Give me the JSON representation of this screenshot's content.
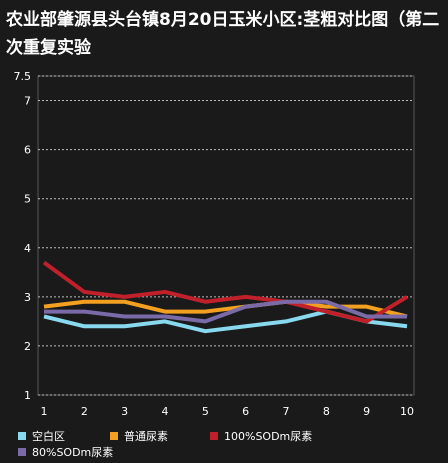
{
  "chart_data": {
    "type": "line",
    "title": "农业部肇源县头台镇8月20日玉米小区:茎粗对比图（第二次重复实验",
    "categories": [
      "1",
      "2",
      "3",
      "4",
      "5",
      "6",
      "7",
      "8",
      "9",
      "10"
    ],
    "yticks": [
      "1",
      "2",
      "3",
      "4",
      "5",
      "6",
      "7",
      "7.5"
    ],
    "ylim": [
      1,
      7.5
    ],
    "grid": true,
    "legend_position": "bottom",
    "series": [
      {
        "name": "空白区",
        "color": "#88d8ee",
        "values": [
          2.6,
          2.4,
          2.4,
          2.5,
          2.3,
          2.4,
          2.5,
          2.7,
          2.5,
          2.4
        ]
      },
      {
        "name": "普通尿素",
        "color": "#f3a020",
        "values": [
          2.8,
          2.9,
          2.9,
          2.7,
          2.7,
          2.8,
          2.9,
          2.8,
          2.8,
          2.6
        ]
      },
      {
        "name": "100%SODm尿素",
        "color": "#c0202a",
        "values": [
          3.7,
          3.1,
          3.0,
          3.1,
          2.9,
          3.0,
          2.9,
          2.7,
          2.5,
          3.0
        ]
      },
      {
        "name": "80%SODm尿素",
        "color": "#7a6aa8",
        "values": [
          2.7,
          2.7,
          2.6,
          2.6,
          2.5,
          2.8,
          2.9,
          2.9,
          2.6,
          2.6
        ]
      }
    ]
  }
}
